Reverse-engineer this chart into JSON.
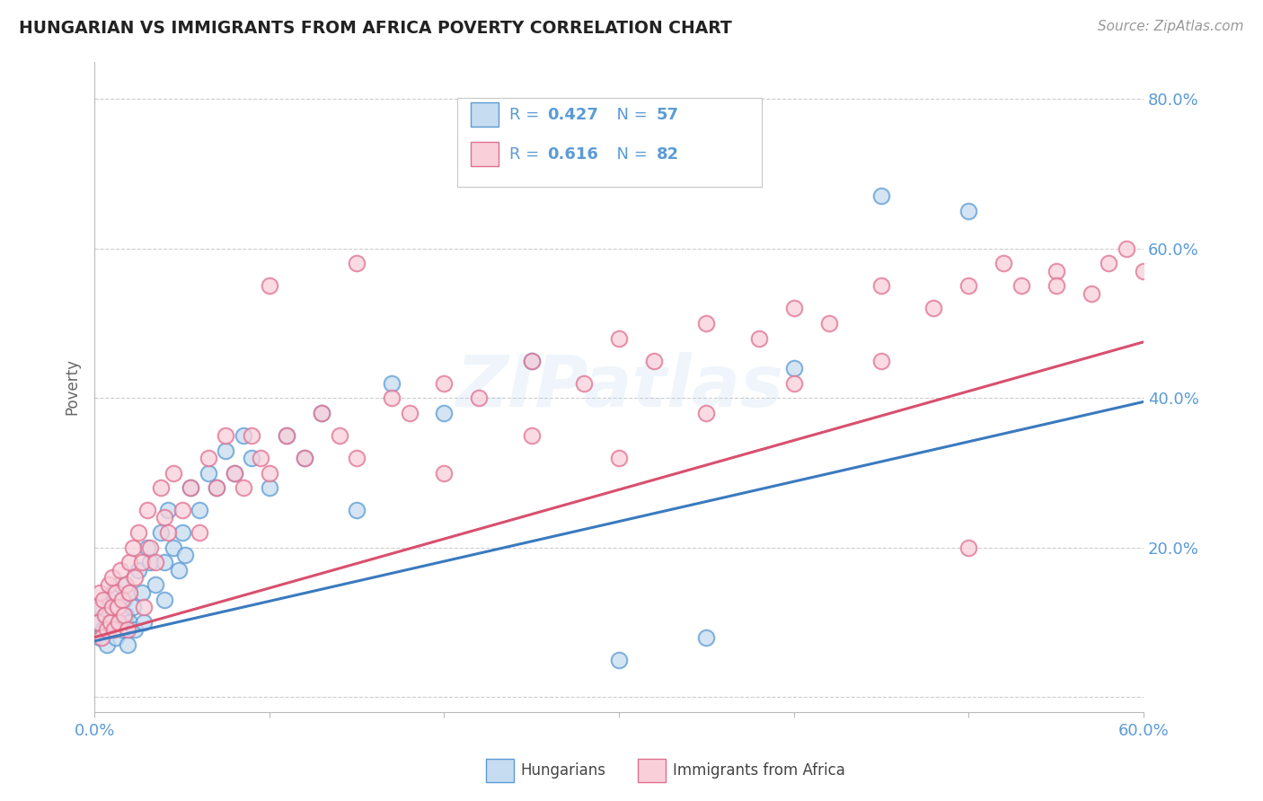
{
  "title": "HUNGARIAN VS IMMIGRANTS FROM AFRICA POVERTY CORRELATION CHART",
  "source_text": "Source: ZipAtlas.com",
  "ylabel": "Poverty",
  "xlim": [
    0.0,
    0.6
  ],
  "ylim": [
    -0.02,
    0.85
  ],
  "xticks": [
    0.0,
    0.1,
    0.2,
    0.3,
    0.4,
    0.5,
    0.6
  ],
  "xticklabels": [
    "0.0%",
    "",
    "",
    "",
    "",
    "",
    "60.0%"
  ],
  "yticks": [
    0.0,
    0.2,
    0.4,
    0.6,
    0.8
  ],
  "yticklabels": [
    "",
    "20.0%",
    "40.0%",
    "60.0%",
    "80.0%"
  ],
  "blue_fill": "#c6dcf0",
  "blue_edge": "#5b9bd5",
  "pink_fill": "#f9d0da",
  "pink_edge": "#e07090",
  "blue_line_color": "#3a7abf",
  "pink_line_color": "#d94f6e",
  "legend_color": "#5b9bd5",
  "background_color": "#ffffff",
  "watermark": "ZIPatlas",
  "blue_x": [
    0.002,
    0.003,
    0.004,
    0.005,
    0.006,
    0.007,
    0.008,
    0.009,
    0.01,
    0.01,
    0.012,
    0.013,
    0.014,
    0.015,
    0.016,
    0.017,
    0.018,
    0.019,
    0.02,
    0.02,
    0.022,
    0.023,
    0.025,
    0.027,
    0.028,
    0.03,
    0.032,
    0.035,
    0.038,
    0.04,
    0.04,
    0.042,
    0.045,
    0.048,
    0.05,
    0.052,
    0.055,
    0.06,
    0.065,
    0.07,
    0.075,
    0.08,
    0.085,
    0.09,
    0.1,
    0.11,
    0.12,
    0.13,
    0.15,
    0.17,
    0.2,
    0.25,
    0.3,
    0.35,
    0.4,
    0.45,
    0.5
  ],
  "blue_y": [
    0.1,
    0.08,
    0.12,
    0.09,
    0.11,
    0.07,
    0.13,
    0.1,
    0.09,
    0.14,
    0.08,
    0.12,
    0.1,
    0.15,
    0.09,
    0.13,
    0.11,
    0.07,
    0.14,
    0.1,
    0.12,
    0.09,
    0.17,
    0.14,
    0.1,
    0.2,
    0.18,
    0.15,
    0.22,
    0.18,
    0.13,
    0.25,
    0.2,
    0.17,
    0.22,
    0.19,
    0.28,
    0.25,
    0.3,
    0.28,
    0.33,
    0.3,
    0.35,
    0.32,
    0.28,
    0.35,
    0.32,
    0.38,
    0.25,
    0.42,
    0.38,
    0.45,
    0.05,
    0.08,
    0.44,
    0.67,
    0.65
  ],
  "pink_x": [
    0.001,
    0.002,
    0.003,
    0.004,
    0.005,
    0.006,
    0.007,
    0.008,
    0.009,
    0.01,
    0.01,
    0.011,
    0.012,
    0.013,
    0.014,
    0.015,
    0.016,
    0.017,
    0.018,
    0.019,
    0.02,
    0.02,
    0.022,
    0.023,
    0.025,
    0.027,
    0.028,
    0.03,
    0.032,
    0.035,
    0.038,
    0.04,
    0.042,
    0.045,
    0.05,
    0.055,
    0.06,
    0.065,
    0.07,
    0.075,
    0.08,
    0.085,
    0.09,
    0.095,
    0.1,
    0.11,
    0.12,
    0.13,
    0.14,
    0.15,
    0.17,
    0.18,
    0.2,
    0.22,
    0.25,
    0.28,
    0.3,
    0.32,
    0.35,
    0.38,
    0.4,
    0.42,
    0.45,
    0.48,
    0.5,
    0.52,
    0.53,
    0.55,
    0.57,
    0.58,
    0.59,
    0.6,
    0.2,
    0.25,
    0.3,
    0.35,
    0.4,
    0.45,
    0.5,
    0.55,
    0.1,
    0.15
  ],
  "pink_y": [
    0.12,
    0.1,
    0.14,
    0.08,
    0.13,
    0.11,
    0.09,
    0.15,
    0.1,
    0.12,
    0.16,
    0.09,
    0.14,
    0.12,
    0.1,
    0.17,
    0.13,
    0.11,
    0.15,
    0.09,
    0.18,
    0.14,
    0.2,
    0.16,
    0.22,
    0.18,
    0.12,
    0.25,
    0.2,
    0.18,
    0.28,
    0.24,
    0.22,
    0.3,
    0.25,
    0.28,
    0.22,
    0.32,
    0.28,
    0.35,
    0.3,
    0.28,
    0.35,
    0.32,
    0.3,
    0.35,
    0.32,
    0.38,
    0.35,
    0.32,
    0.4,
    0.38,
    0.42,
    0.4,
    0.45,
    0.42,
    0.48,
    0.45,
    0.5,
    0.48,
    0.52,
    0.5,
    0.55,
    0.52,
    0.55,
    0.58,
    0.55,
    0.57,
    0.54,
    0.58,
    0.6,
    0.57,
    0.3,
    0.35,
    0.32,
    0.38,
    0.42,
    0.45,
    0.2,
    0.55,
    0.55,
    0.58
  ],
  "blue_trend_x": [
    0.0,
    0.6
  ],
  "blue_trend_y": [
    0.075,
    0.395
  ],
  "pink_trend_x": [
    0.0,
    0.6
  ],
  "pink_trend_y": [
    0.08,
    0.475
  ]
}
